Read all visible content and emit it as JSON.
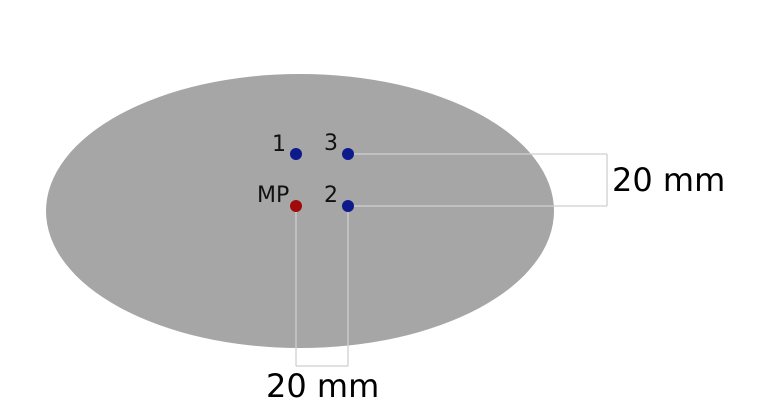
{
  "points": [
    {
      "id": "p1",
      "label": "1",
      "color": "#0c1a8c"
    },
    {
      "id": "p3",
      "label": "3",
      "color": "#0c1a8c"
    },
    {
      "id": "mp",
      "label": "MP",
      "color": "#a10a0a"
    },
    {
      "id": "p2",
      "label": "2",
      "color": "#0c1a8c"
    }
  ],
  "dimensions": {
    "vertical_label": "20 mm",
    "horizontal_label": "20 mm"
  },
  "colors": {
    "ellipse_fill": "#a6a6a6",
    "dimension_line": "#cfcfcf",
    "background": "#ffffff"
  }
}
